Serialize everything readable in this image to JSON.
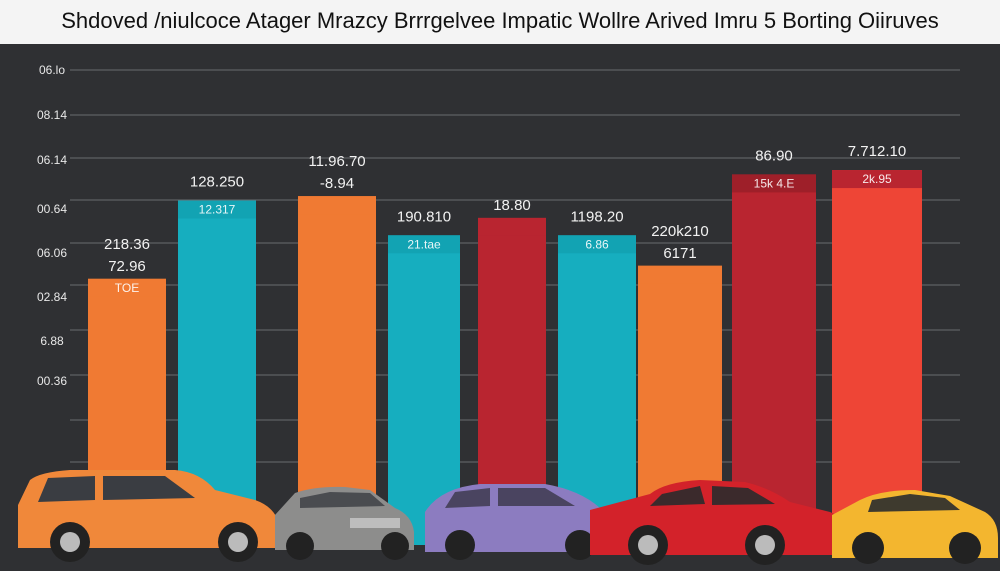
{
  "chart_data": {
    "type": "bar",
    "title": "Shdoved /niulcoce Atager Mrazcy Brrrgelvee Impatic Wollre Arived Imru 5 Borting Oiiruves",
    "yticks": [
      "06.lo",
      "08.14",
      "06.14",
      "00.64",
      "06.06",
      "02.84",
      "6.88",
      "00.36"
    ],
    "ylim": [
      0,
      1
    ],
    "grid": true,
    "bars": [
      {
        "color": "#f07a33",
        "value": 0.52,
        "cap": "#f07a33",
        "top_label": "218.36",
        "cap_label": "72.96",
        "inside_label": "TOE"
      },
      {
        "color": "#16aebf",
        "value": 0.7,
        "cap": "#12a3b3",
        "top_label": "128.250",
        "cap_label": "",
        "inside_label": "12.317"
      },
      {
        "color": "#f07a33",
        "value": 0.71,
        "cap": "#f07a33",
        "top_label": "11.96.70",
        "cap_label": "-8.94",
        "inside_label": ""
      },
      {
        "color": "#16aebf",
        "value": 0.62,
        "cap": "#12a3b3",
        "top_label": "190.810",
        "cap_label": "",
        "inside_label": "21.tae"
      },
      {
        "color": "#b92530",
        "value": 0.66,
        "cap": "#b92530",
        "top_label": "",
        "cap_label": "18.80",
        "inside_label": ""
      },
      {
        "color": "#16aebf",
        "value": 0.62,
        "cap": "#12a3b3",
        "top_label": "1198.20",
        "cap_label": "",
        "inside_label": "6.86"
      },
      {
        "color": "#f07a33",
        "value": 0.55,
        "cap": "#f07a33",
        "top_label": "220k210",
        "cap_label": "6171",
        "inside_label": ""
      },
      {
        "color": "#b92530",
        "value": 0.76,
        "cap": "#9e1f29",
        "top_label": "86.90",
        "cap_label": "",
        "inside_label": "15k 4.E"
      },
      {
        "color": "#ee4536",
        "value": 0.77,
        "cap": "#b92530",
        "top_label": "7.712.10",
        "cap_label": "",
        "inside_label": "2k.95"
      }
    ]
  }
}
